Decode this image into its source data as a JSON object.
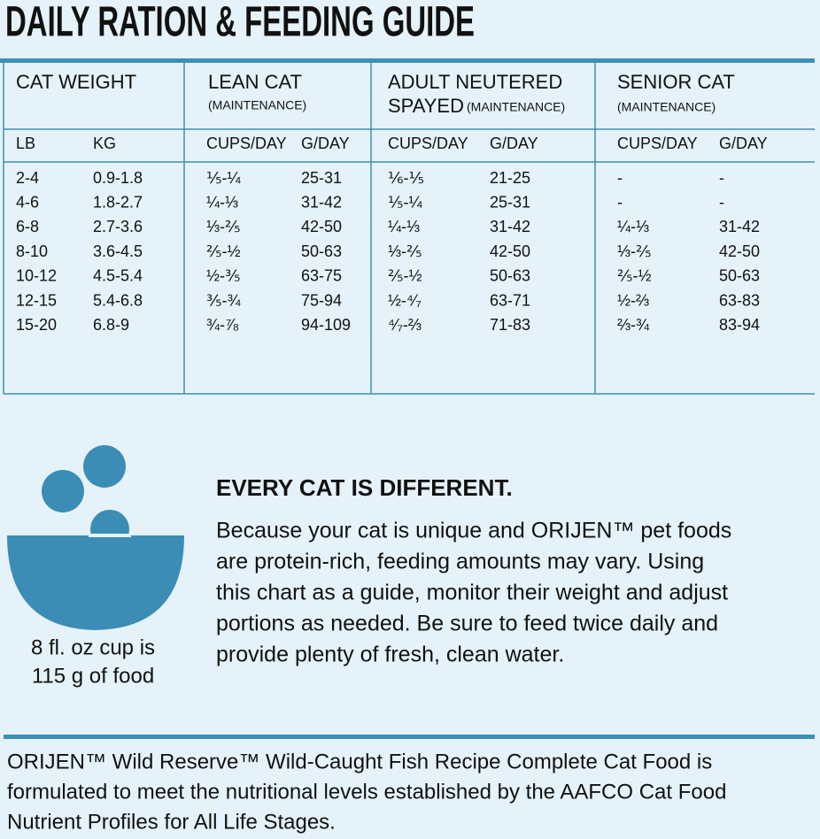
{
  "header": {
    "title": "DAILY RATION & FEEDING GUIDE"
  },
  "table": {
    "headers": [
      {
        "title": "CAT WEIGHT"
      },
      {
        "title": "LEAN CAT",
        "note": "(MAINTENANCE)"
      },
      {
        "title": "ADULT NEUTERED",
        "title2": "SPAYED",
        "note": "(MAINTENANCE)"
      },
      {
        "title": "SENIOR CAT",
        "note": "(MAINTENANCE)"
      }
    ],
    "subheaders": [
      "LB",
      "KG",
      "CUPS/DAY",
      "G/DAY",
      "CUPS/DAY",
      "G/DAY",
      "CUPS/DAY",
      "G/DAY"
    ],
    "rows": [
      [
        "2-4",
        "0.9-1.8",
        "⅕-¼",
        "25-31",
        "⅙-⅕",
        "21-25",
        "-",
        "-"
      ],
      [
        "4-6",
        "1.8-2.7",
        "¼-⅓",
        "31-42",
        "⅕-¼",
        "25-31",
        "-",
        "-"
      ],
      [
        "6-8",
        "2.7-3.6",
        "⅓-⅖",
        "42-50",
        "¼-⅓",
        "31-42",
        "¼-⅓",
        "31-42"
      ],
      [
        "8-10",
        "3.6-4.5",
        "⅖-½",
        "50-63",
        "⅓-⅖",
        "42-50",
        "⅓-⅖",
        "42-50"
      ],
      [
        "10-12",
        "4.5-5.4",
        "½-⅗",
        "63-75",
        "⅖-½",
        "50-63",
        "⅖-½",
        "50-63"
      ],
      [
        "12-15",
        "5.4-6.8",
        "⅗-¾",
        "75-94",
        "½-⁴⁄₇",
        "63-71",
        "½-⅔",
        "63-83"
      ],
      [
        "15-20",
        "6.8-9",
        "¾-⅞",
        "94-109",
        "⁴⁄₇-⅔",
        "71-83",
        "⅔-¾",
        "83-94"
      ]
    ]
  },
  "icon": {
    "caption": [
      "8 fl. oz cup is",
      "115 g of food"
    ]
  },
  "info": {
    "heading": "EVERY CAT IS DIFFERENT.",
    "body": [
      "Because your cat is unique and ORIJEN™ pet foods",
      "are protein-rich, feeding amounts may vary. Using",
      "this chart as a guide, monitor their weight and adjust",
      "portions as needed. Be sure to feed twice daily and",
      "provide plenty of fresh, clean water."
    ]
  },
  "footer": {
    "lines": [
      "ORIJEN™ Wild Reserve™ Wild-Caught Fish Recipe Complete Cat Food is",
      "formulated to meet the nutritional levels established by the AAFCO Cat Food",
      "Nutrient Profiles for All Life Stages."
    ]
  }
}
